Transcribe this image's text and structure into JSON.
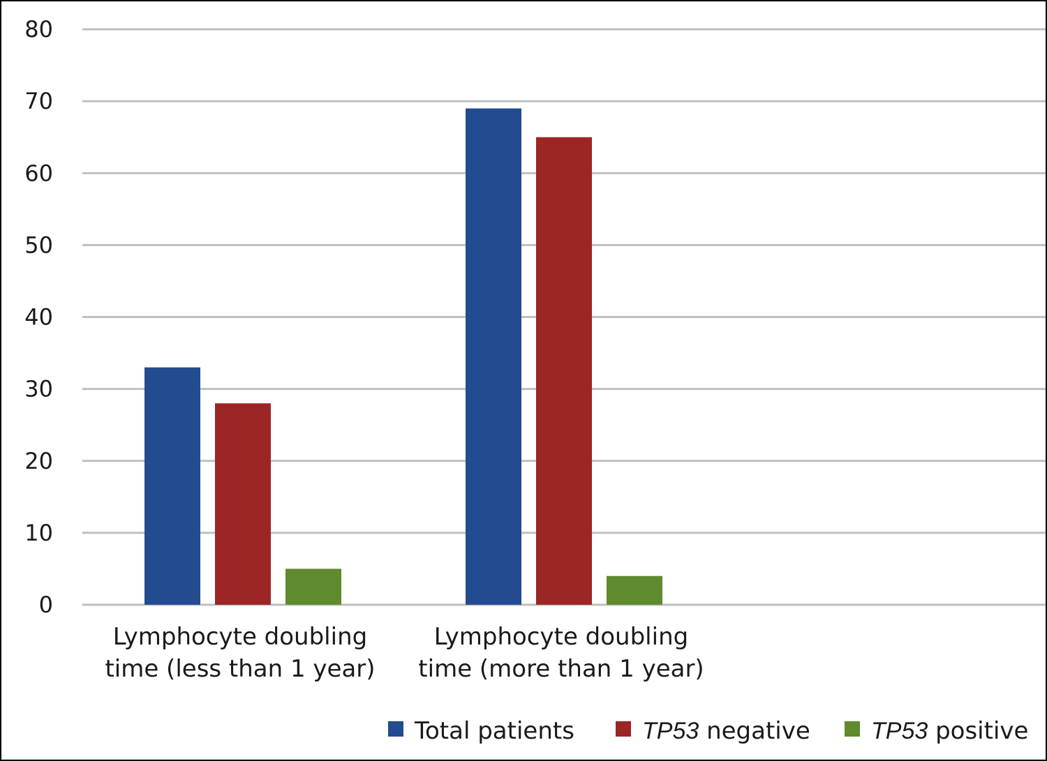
{
  "chart_data": {
    "type": "bar",
    "title": "",
    "xlabel": "",
    "ylabel": "",
    "ylim": [
      0,
      80
    ],
    "yticks": [
      0,
      10,
      20,
      30,
      40,
      50,
      60,
      70,
      80
    ],
    "grid": true,
    "legend_position": "bottom-right",
    "categories": [
      [
        "Lymphocyte doubling",
        "time (less than 1 year)"
      ],
      [
        "Lymphocyte doubling",
        "time (more than 1 year)"
      ],
      [
        "",
        ""
      ]
    ],
    "series": [
      {
        "name": "Total patients",
        "name_italic": "",
        "name_rest": "Total patients",
        "color": "#234b8f",
        "values": [
          33,
          69,
          null
        ]
      },
      {
        "name": "TP53 negative",
        "name_italic": "TP53",
        "name_rest": " negative",
        "color": "#9b2625",
        "values": [
          28,
          65,
          null
        ]
      },
      {
        "name": "TP53 positive",
        "name_italic": "TP53",
        "name_rest": " positive",
        "color": "#5f8a2d",
        "values": [
          5,
          4,
          null
        ]
      }
    ]
  }
}
